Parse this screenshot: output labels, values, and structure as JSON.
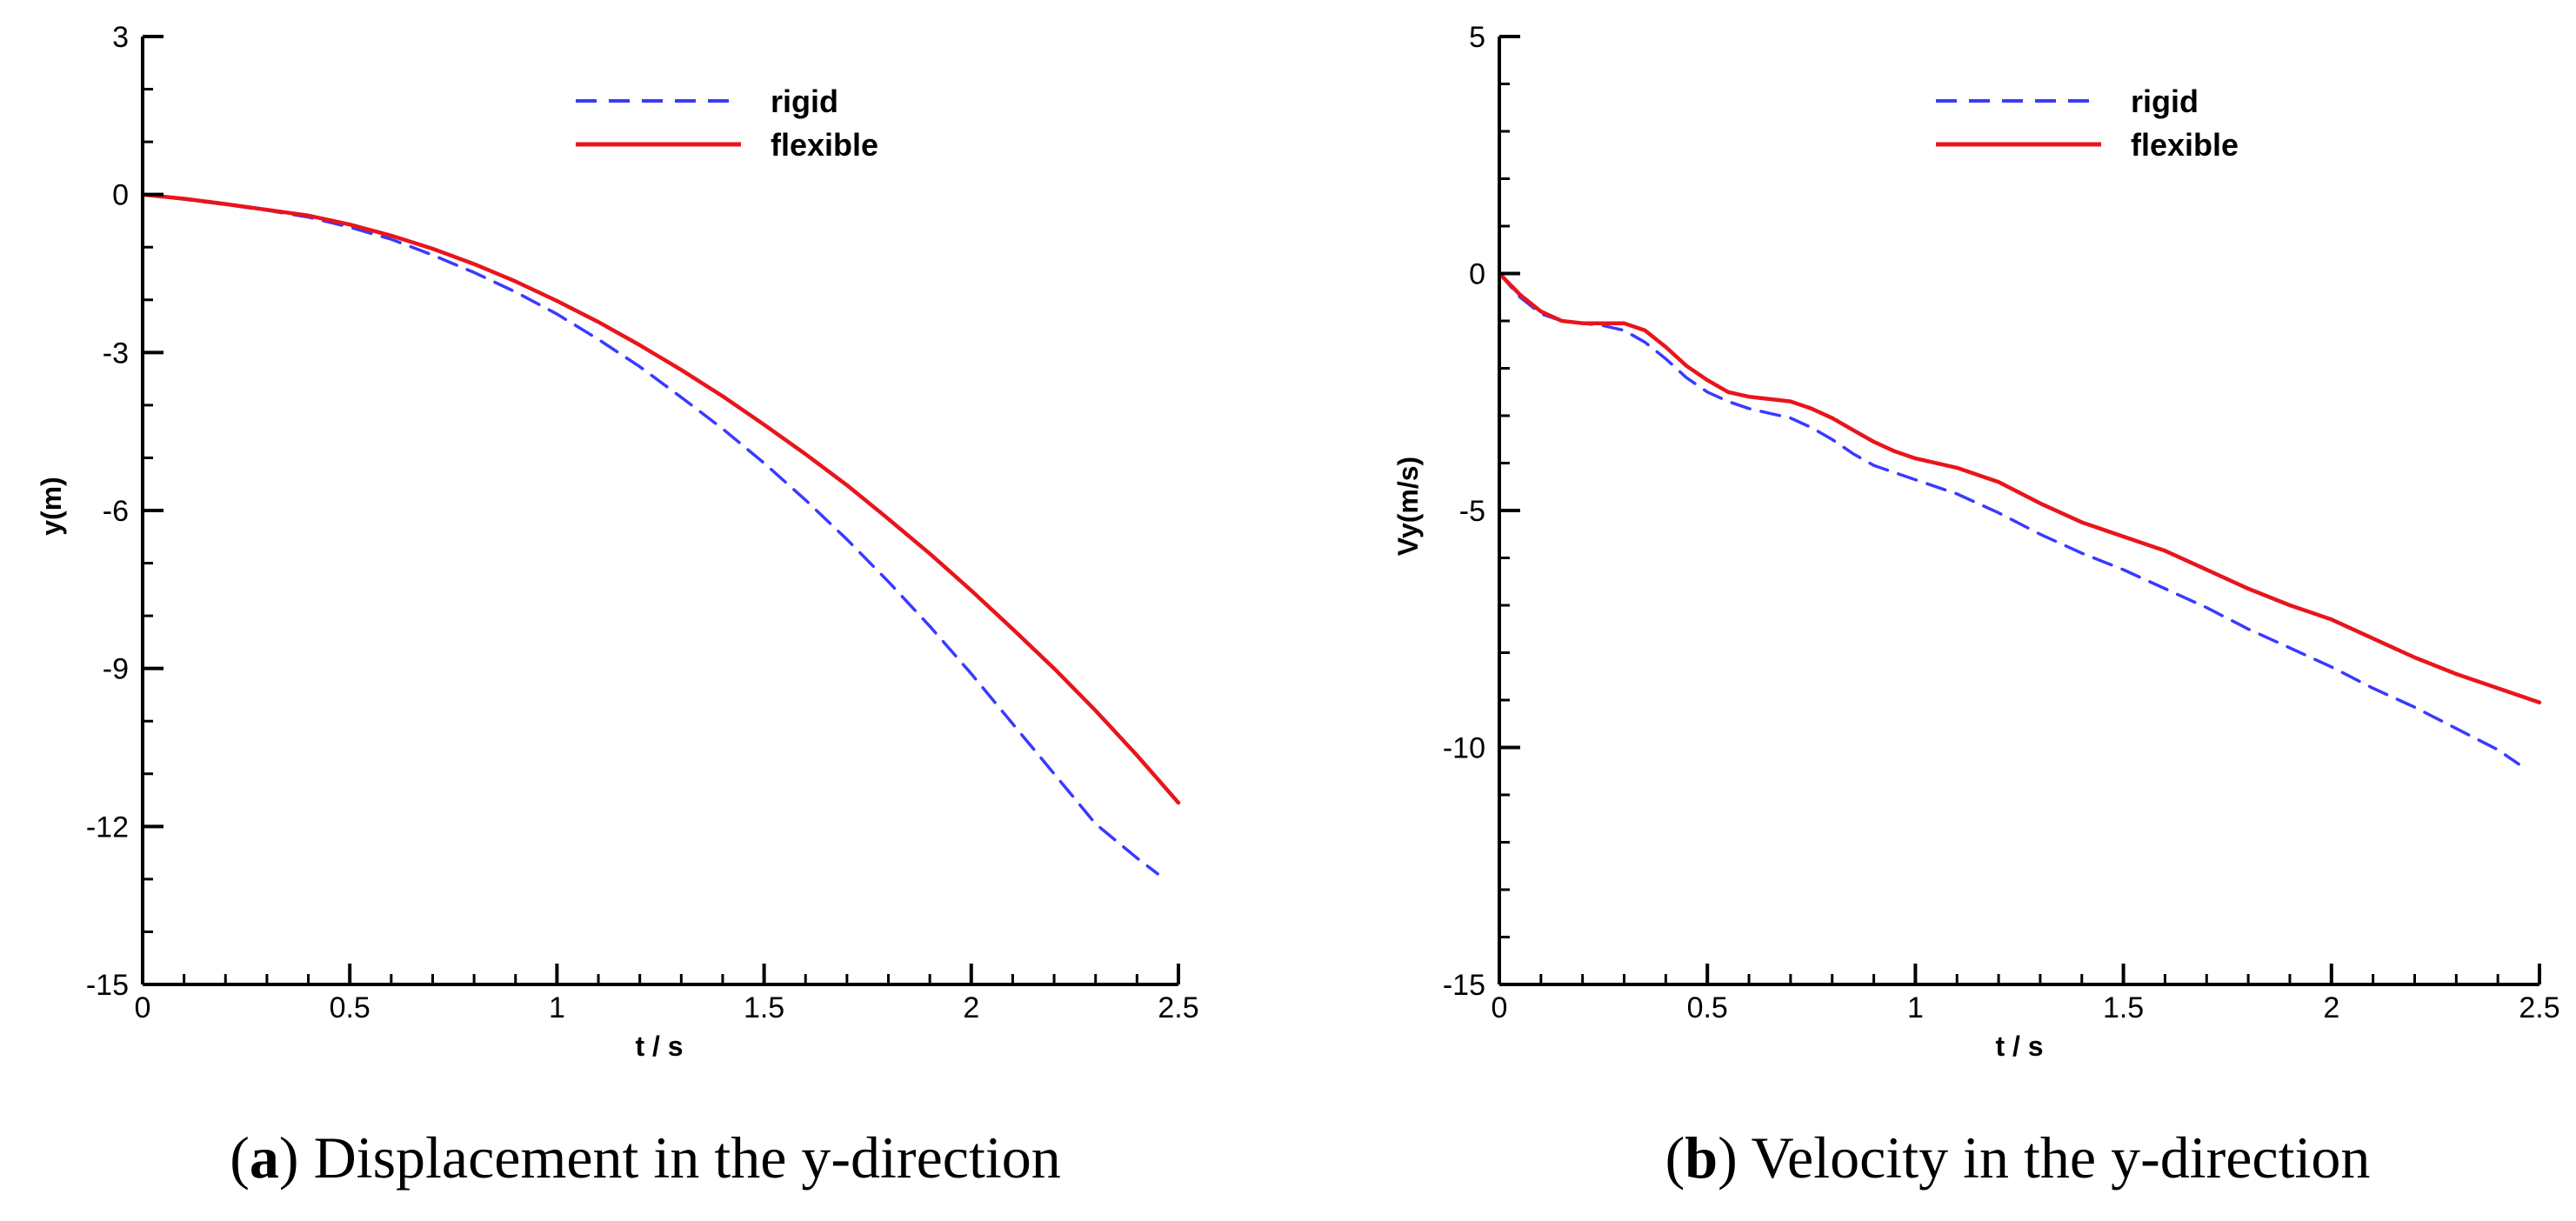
{
  "chart_data": [
    {
      "type": "line",
      "panel": "a",
      "caption_letter": "a",
      "caption_text": "Displacement in the y-direction",
      "xlabel": "t / s",
      "ylabel": "y(m)",
      "xlim": [
        0,
        2.5
      ],
      "ylim": [
        -15,
        3
      ],
      "xticks": [
        0,
        0.5,
        1,
        1.5,
        2,
        2.5
      ],
      "xtick_labels": [
        "0",
        "0.5",
        "1",
        "1.5",
        "2",
        "2.5"
      ],
      "yticks": [
        -15,
        -12,
        -9,
        -6,
        -3,
        0,
        3
      ],
      "ytick_labels": [
        "-15",
        "-12",
        "-9",
        "-6",
        "-3",
        "0",
        "3"
      ],
      "legend_position": "top-center",
      "series": [
        {
          "name": "rigid",
          "style": "dashed",
          "color": "#3a3aff",
          "x": [
            0,
            0.1,
            0.2,
            0.3,
            0.4,
            0.5,
            0.6,
            0.7,
            0.8,
            0.9,
            1.0,
            1.1,
            1.2,
            1.3,
            1.4,
            1.5,
            1.6,
            1.7,
            1.8,
            1.9,
            2.0,
            2.1,
            2.2,
            2.3,
            2.4,
            2.45
          ],
          "y": [
            0,
            -0.09,
            -0.19,
            -0.3,
            -0.43,
            -0.62,
            -0.85,
            -1.15,
            -1.48,
            -1.85,
            -2.27,
            -2.75,
            -3.27,
            -3.85,
            -4.45,
            -5.1,
            -5.8,
            -6.55,
            -7.35,
            -8.2,
            -9.1,
            -10.05,
            -11.0,
            -11.95,
            -12.6,
            -12.9
          ]
        },
        {
          "name": "flexible",
          "style": "solid",
          "color": "#e8151b",
          "x": [
            0,
            0.1,
            0.2,
            0.3,
            0.4,
            0.5,
            0.6,
            0.7,
            0.8,
            0.9,
            1.0,
            1.1,
            1.2,
            1.3,
            1.4,
            1.5,
            1.6,
            1.7,
            1.8,
            1.9,
            2.0,
            2.1,
            2.2,
            2.3,
            2.4,
            2.5
          ],
          "y": [
            0,
            -0.08,
            -0.18,
            -0.29,
            -0.4,
            -0.57,
            -0.78,
            -1.03,
            -1.32,
            -1.65,
            -2.02,
            -2.42,
            -2.86,
            -3.33,
            -3.83,
            -4.37,
            -4.93,
            -5.52,
            -6.16,
            -6.82,
            -7.52,
            -8.25,
            -9.0,
            -9.8,
            -10.65,
            -11.55
          ]
        }
      ]
    },
    {
      "type": "line",
      "panel": "b",
      "caption_letter": "b",
      "caption_text": "Velocity in the y-direction",
      "xlabel": "t / s",
      "ylabel": "Vy(m/s)",
      "xlim": [
        0,
        2.5
      ],
      "ylim": [
        -15,
        5
      ],
      "xticks": [
        0,
        0.5,
        1,
        1.5,
        2,
        2.5
      ],
      "xtick_labels": [
        "0",
        "0.5",
        "1",
        "1.5",
        "2",
        "2.5"
      ],
      "yticks": [
        -15,
        -10,
        -5,
        0,
        5
      ],
      "ytick_labels": [
        "-15",
        "-10",
        "-5",
        "0",
        "5"
      ],
      "legend_position": "top-center",
      "series": [
        {
          "name": "rigid",
          "style": "dashed",
          "color": "#3a3aff",
          "x": [
            0,
            0.05,
            0.1,
            0.15,
            0.2,
            0.25,
            0.3,
            0.35,
            0.4,
            0.45,
            0.5,
            0.55,
            0.6,
            0.65,
            0.7,
            0.75,
            0.8,
            0.85,
            0.9,
            0.95,
            1.0,
            1.1,
            1.2,
            1.3,
            1.4,
            1.5,
            1.6,
            1.7,
            1.8,
            1.9,
            2.0,
            2.1,
            2.2,
            2.3,
            2.4,
            2.45
          ],
          "y": [
            0,
            -0.5,
            -0.85,
            -1.0,
            -1.05,
            -1.1,
            -1.2,
            -1.45,
            -1.8,
            -2.2,
            -2.5,
            -2.7,
            -2.85,
            -2.95,
            -3.05,
            -3.25,
            -3.5,
            -3.8,
            -4.05,
            -4.2,
            -4.35,
            -4.65,
            -5.05,
            -5.5,
            -5.9,
            -6.25,
            -6.65,
            -7.05,
            -7.5,
            -7.9,
            -8.3,
            -8.75,
            -9.15,
            -9.6,
            -10.05,
            -10.35
          ]
        },
        {
          "name": "flexible",
          "style": "solid",
          "color": "#e8151b",
          "x": [
            0,
            0.05,
            0.1,
            0.15,
            0.2,
            0.25,
            0.3,
            0.35,
            0.4,
            0.45,
            0.5,
            0.55,
            0.6,
            0.65,
            0.7,
            0.75,
            0.8,
            0.85,
            0.9,
            0.95,
            1.0,
            1.1,
            1.2,
            1.3,
            1.4,
            1.5,
            1.6,
            1.7,
            1.8,
            1.9,
            2.0,
            2.1,
            2.2,
            2.3,
            2.4,
            2.5
          ],
          "y": [
            0,
            -0.45,
            -0.8,
            -1.0,
            -1.05,
            -1.05,
            -1.05,
            -1.2,
            -1.55,
            -1.95,
            -2.25,
            -2.5,
            -2.6,
            -2.65,
            -2.7,
            -2.85,
            -3.05,
            -3.3,
            -3.55,
            -3.75,
            -3.9,
            -4.1,
            -4.4,
            -4.85,
            -5.25,
            -5.55,
            -5.85,
            -6.25,
            -6.65,
            -7.0,
            -7.3,
            -7.7,
            -8.1,
            -8.45,
            -8.75,
            -9.05
          ]
        }
      ]
    }
  ]
}
